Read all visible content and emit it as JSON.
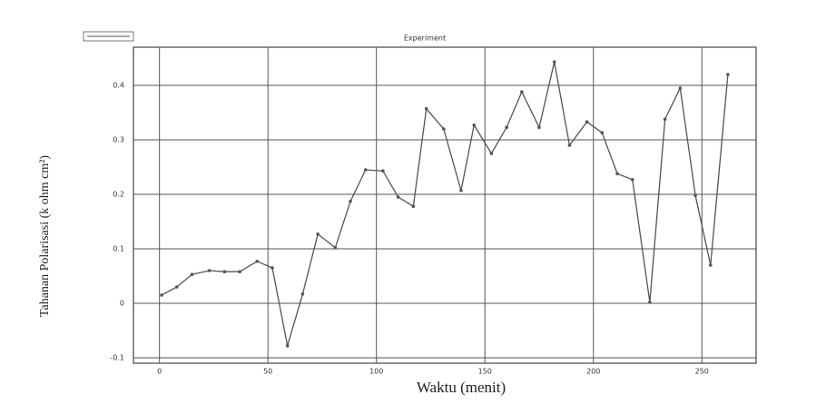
{
  "chart_data": {
    "type": "line",
    "title": "Experiment",
    "x_label": "Waktu (menit)",
    "y_label": "Tahanan Polarisasi (k ohm cm²)",
    "x": [
      1,
      8,
      15,
      23,
      30,
      37,
      45,
      52,
      59,
      66,
      73,
      81,
      88,
      95,
      103,
      110,
      117,
      123,
      131,
      139,
      145,
      153,
      160,
      167,
      175,
      182,
      189,
      197,
      204,
      211,
      218,
      226,
      233,
      240,
      247,
      254,
      262
    ],
    "values": [
      0.015,
      0.03,
      0.053,
      0.06,
      0.058,
      0.058,
      0.077,
      0.065,
      -0.078,
      0.017,
      0.127,
      0.102,
      0.187,
      0.245,
      0.243,
      0.195,
      0.178,
      0.357,
      0.32,
      0.207,
      0.327,
      0.275,
      0.323,
      0.388,
      0.323,
      0.443,
      0.29,
      0.333,
      0.313,
      0.238,
      0.227,
      0.002,
      0.338,
      0.395,
      0.198,
      0.07,
      0.42
    ],
    "color": "#555555",
    "xlim": [
      -12,
      275
    ],
    "xticks": [
      0,
      50,
      100,
      150,
      200,
      250
    ],
    "ylim": [
      -0.11,
      0.47
    ],
    "yticks": [
      -0.1,
      0,
      0.1,
      0.2,
      0.3,
      0.4
    ],
    "grid": true
  }
}
